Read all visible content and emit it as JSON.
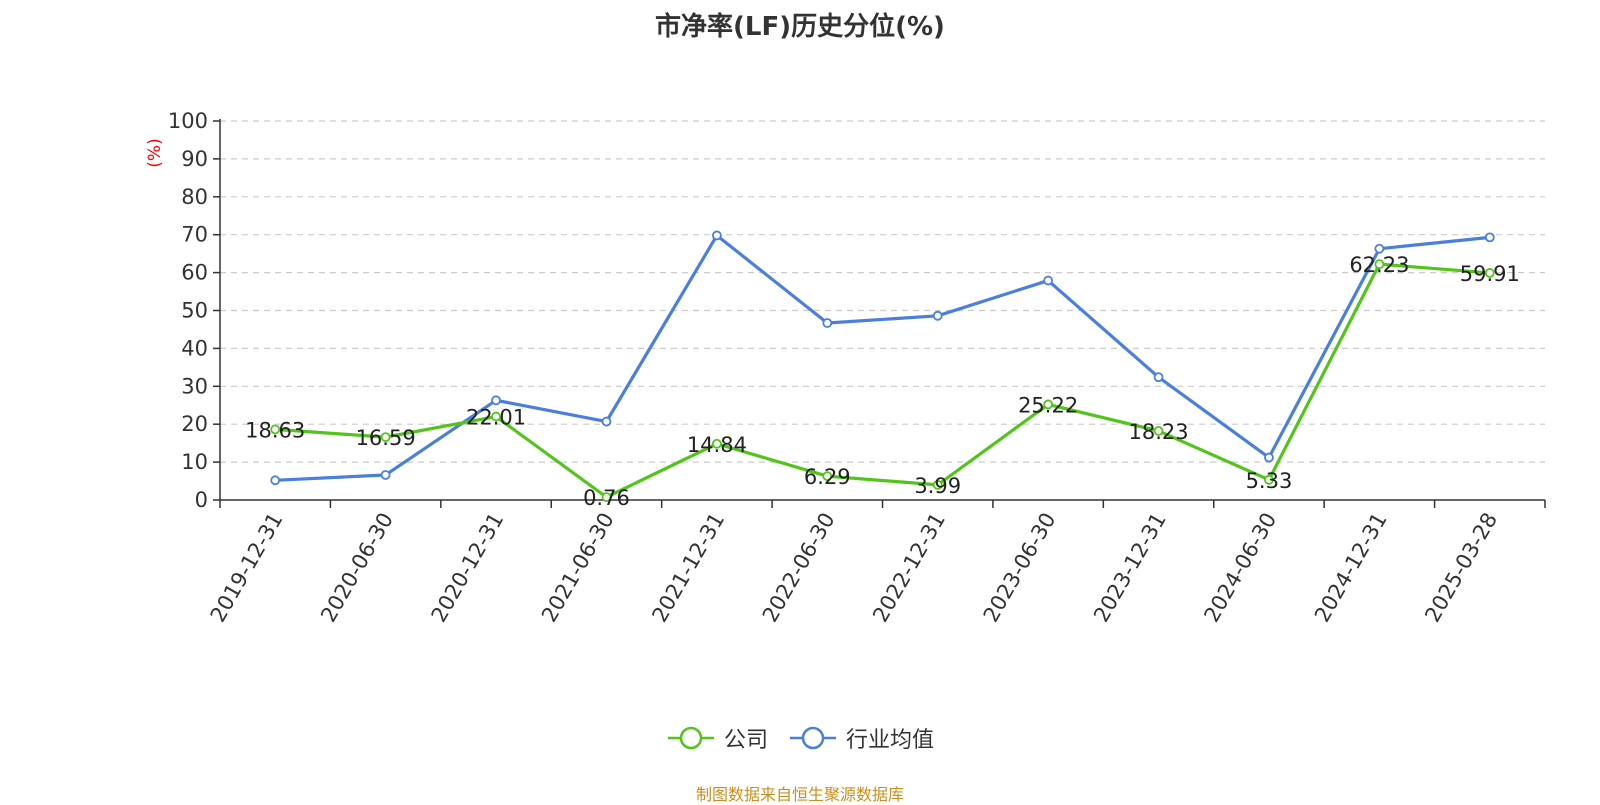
{
  "chart_data": {
    "type": "line",
    "title": "市净率(LF)历史分位(%)",
    "ylabel": "(%)",
    "xlabel": "",
    "ylim": [
      0,
      100
    ],
    "yticks": [
      0,
      10,
      20,
      30,
      40,
      50,
      60,
      70,
      80,
      90,
      100
    ],
    "categories": [
      "2019-12-31",
      "2020-06-30",
      "2020-12-31",
      "2021-06-30",
      "2021-12-31",
      "2022-06-30",
      "2022-12-31",
      "2023-06-30",
      "2023-12-31",
      "2024-06-30",
      "2024-12-31",
      "2025-03-28"
    ],
    "grid": true,
    "legend_position": "bottom",
    "series": [
      {
        "name": "公司",
        "color": "#52c41a",
        "values": [
          18.63,
          16.59,
          22.01,
          0.76,
          14.84,
          6.29,
          3.99,
          25.22,
          18.23,
          5.33,
          62.23,
          59.91
        ],
        "data_labels": true
      },
      {
        "name": "行业均值",
        "color": "#4a7fdb",
        "values": [
          5.2,
          6.6,
          26.3,
          20.7,
          69.8,
          46.7,
          48.6,
          57.9,
          32.4,
          11.2,
          66.3,
          69.3
        ],
        "data_labels": false
      }
    ]
  },
  "footer": {
    "source": "制图数据来自恒生聚源数据库"
  }
}
